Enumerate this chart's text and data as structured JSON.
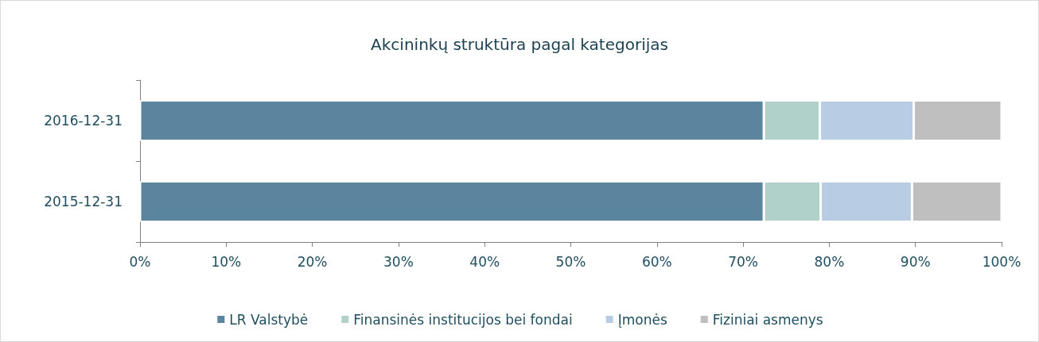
{
  "chart_data": {
    "type": "bar",
    "orientation": "horizontal",
    "stacked": true,
    "title": "Akcininkų struktūra pagal kategorijas",
    "categories": [
      "2016-12-31",
      "2015-12-31"
    ],
    "series": [
      {
        "name": "LR Valstybė",
        "color": "#5b849e",
        "values": [
          72.4,
          72.4
        ]
      },
      {
        "name": "Finansinės institucijos bei fondai",
        "color": "#b0d1c9",
        "values": [
          6.5,
          6.6
        ]
      },
      {
        "name": "Įmonės",
        "color": "#b8cce4",
        "values": [
          10.9,
          10.6
        ]
      },
      {
        "name": "Fiziniai asmenys",
        "color": "#bfbfbf",
        "values": [
          10.2,
          10.4
        ]
      }
    ],
    "xlim": [
      0,
      100
    ],
    "xticks": [
      {
        "value": 0,
        "label": "0%"
      },
      {
        "value": 10,
        "label": "10%"
      },
      {
        "value": 20,
        "label": "20%"
      },
      {
        "value": 30,
        "label": "30%"
      },
      {
        "value": 40,
        "label": "40%"
      },
      {
        "value": 50,
        "label": "50%"
      },
      {
        "value": 60,
        "label": "60%"
      },
      {
        "value": 70,
        "label": "70%"
      },
      {
        "value": 80,
        "label": "80%"
      },
      {
        "value": 90,
        "label": "90%"
      },
      {
        "value": 100,
        "label": "100%"
      }
    ],
    "grid": false,
    "legend": "bottom"
  }
}
